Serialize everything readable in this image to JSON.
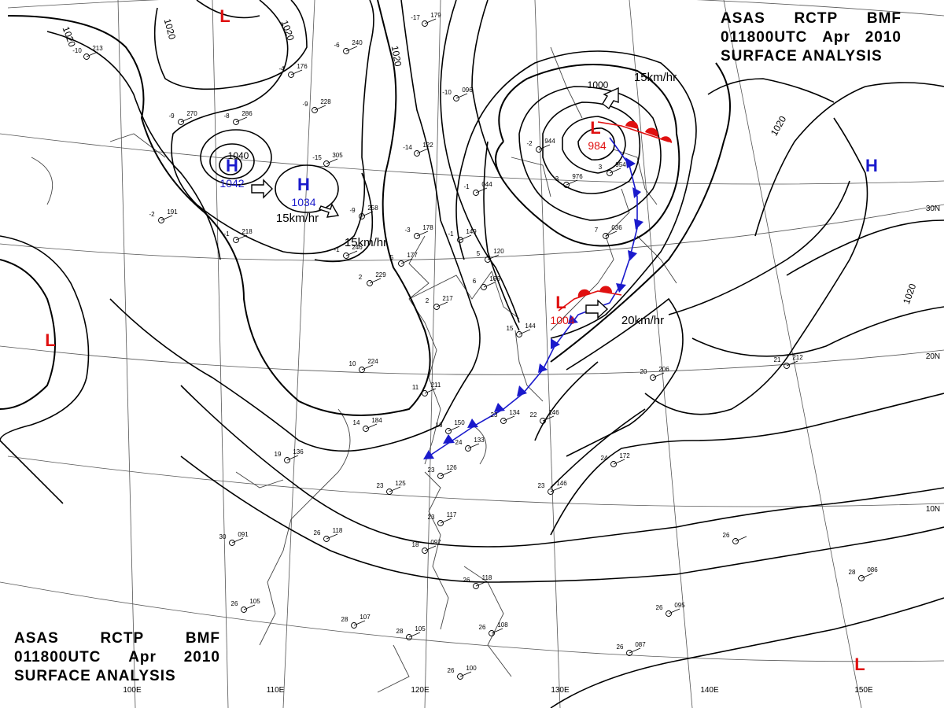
{
  "title": {
    "product": "ASAS",
    "station": "RCTP",
    "office": "BMF",
    "time": "011800UTC",
    "month": "Apr",
    "year": "2010",
    "type": "SURFACE ANALYSIS"
  },
  "pressure_centers": [
    {
      "kind": "H",
      "value": "1042",
      "color": "#1a1acc"
    },
    {
      "kind": "H",
      "value": "1034",
      "color": "#1a1acc"
    },
    {
      "kind": "H",
      "value": "",
      "color": "#1a1acc"
    },
    {
      "kind": "L",
      "value": "984",
      "color": "#e01010"
    },
    {
      "kind": "L",
      "value": "1004",
      "color": "#e01010"
    },
    {
      "kind": "L",
      "value": "",
      "color": "#e01010"
    },
    {
      "kind": "L",
      "value": "",
      "color": "#e01010"
    },
    {
      "kind": "L",
      "value": "",
      "color": "#e01010"
    }
  ],
  "isobar_labels": [
    "1020",
    "1020",
    "1020",
    "1040",
    "1000",
    "1020",
    "1020",
    "1020"
  ],
  "motion_labels": [
    "15km/hr",
    "15km/hr",
    "15km/hr",
    "20km/hr"
  ],
  "longitude_labels": [
    "100E",
    "110E",
    "120E",
    "130E",
    "140E",
    "150E"
  ],
  "latitude_labels": [
    "30N",
    "20N",
    "10N"
  ],
  "station_plots": [
    {
      "t": "-17",
      "p": "179"
    },
    {
      "t": "-10",
      "p": "213"
    },
    {
      "t": "-6",
      "p": "240"
    },
    {
      "t": "-4",
      "p": "176"
    },
    {
      "t": "-9",
      "p": "228"
    },
    {
      "t": "-9",
      "p": "270"
    },
    {
      "t": "-8",
      "p": "286"
    },
    {
      "t": "-10",
      "p": "096"
    },
    {
      "t": "-15",
      "p": "305"
    },
    {
      "t": "-14",
      "p": "122"
    },
    {
      "t": "-1",
      "p": "218"
    },
    {
      "t": "-2",
      "p": "191"
    },
    {
      "t": "-1",
      "p": "246"
    },
    {
      "t": "-9",
      "p": "258"
    },
    {
      "t": "-3",
      "p": "178"
    },
    {
      "t": "-1",
      "p": "149"
    },
    {
      "t": "-1",
      "p": "044"
    },
    {
      "t": "-2",
      "p": "944"
    },
    {
      "t": "5",
      "p": "177"
    },
    {
      "t": "6",
      "p": "166"
    },
    {
      "t": "5",
      "p": "120"
    },
    {
      "t": "2",
      "p": "229"
    },
    {
      "t": "2",
      "p": "217"
    },
    {
      "t": "10",
      "p": "224"
    },
    {
      "t": "11",
      "p": "211"
    },
    {
      "t": "14",
      "p": "184"
    },
    {
      "t": "16",
      "p": "150"
    },
    {
      "t": "19",
      "p": "136"
    },
    {
      "t": "23",
      "p": "125"
    },
    {
      "t": "23",
      "p": "126"
    },
    {
      "t": "24",
      "p": "133"
    },
    {
      "t": "23",
      "p": "134"
    },
    {
      "t": "22",
      "p": "146"
    },
    {
      "t": "24",
      "p": "172"
    },
    {
      "t": "20",
      "p": "206"
    },
    {
      "t": "21",
      "p": "212"
    },
    {
      "t": "23",
      "p": "146"
    },
    {
      "t": "26",
      "p": "118"
    },
    {
      "t": "30",
      "p": "091"
    },
    {
      "t": "23",
      "p": "117"
    },
    {
      "t": "18",
      "p": "097"
    },
    {
      "t": "26",
      "p": "105"
    },
    {
      "t": "28",
      "p": "107"
    },
    {
      "t": "28",
      "p": "105"
    },
    {
      "t": "26",
      "p": "118"
    },
    {
      "t": "26",
      "p": "108"
    },
    {
      "t": "26",
      "p": "100"
    },
    {
      "t": "26",
      "p": "095"
    },
    {
      "t": "26",
      "p": "087"
    },
    {
      "t": "28",
      "p": "086"
    },
    {
      "t": "26",
      "p": ""
    },
    {
      "t": "7",
      "p": "036"
    },
    {
      "t": "3",
      "p": "954"
    },
    {
      "t": "3",
      "p": "976"
    },
    {
      "t": "15",
      "p": "144"
    }
  ]
}
